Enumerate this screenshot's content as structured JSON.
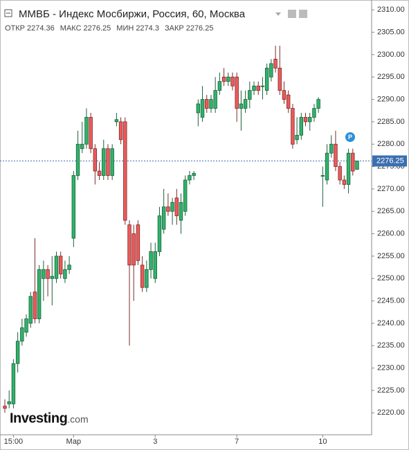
{
  "chart_data": {
    "type": "candlestick",
    "title": "ММВБ - Индекс Мосбиржи, Россия, 60, Москва",
    "header_labels": {
      "open": "ОТКР",
      "high": "МАКС",
      "low": "МИН",
      "close": "ЗАКР"
    },
    "logo": {
      "main": "Investing",
      "suffix": ".com"
    },
    "badge": "P",
    "up_color": "#2fb36b",
    "down_color": "#ee5a5a",
    "categories": [
      null,
      null,
      "15:00",
      null,
      null,
      null,
      null,
      null,
      null,
      null,
      null,
      null,
      null,
      null,
      null,
      null,
      "Мар",
      null,
      null,
      null,
      null,
      null,
      null,
      null,
      null,
      null,
      null,
      null,
      null,
      null,
      null,
      null,
      null,
      null,
      null,
      "3",
      null,
      null,
      null,
      null,
      null,
      null,
      null,
      null,
      null,
      null,
      null,
      null,
      null,
      null,
      null,
      null,
      null,
      null,
      "7",
      null,
      null,
      null,
      null,
      null,
      null,
      null,
      null,
      null,
      null,
      null,
      null,
      null,
      null,
      null,
      null,
      null,
      null,
      null,
      "10",
      null,
      null,
      null,
      null,
      null,
      null,
      null,
      null
    ],
    "open": [
      2221.5,
      2222,
      2222,
      2231,
      2236,
      2238,
      2240,
      2247,
      2241,
      2250,
      2252,
      2250,
      2250,
      2255,
      2250,
      2252,
      2259,
      2273,
      2279,
      2280,
      2286,
      2279,
      2274,
      2273,
      2279,
      2273,
      2285,
      2285,
      2285,
      2262,
      2260,
      2262,
      2253,
      2248,
      2252,
      2250,
      2256,
      2261,
      2266,
      2265,
      2268,
      2263,
      2265,
      2272,
      2273,
      2287,
      2286,
      2290,
      2288,
      2288,
      2292,
      2295,
      2294,
      2295,
      2295,
      2288,
      2288,
      2290,
      2292,
      2293,
      2293,
      2292,
      2295,
      2299,
      2297,
      2292,
      2291,
      2288,
      2281,
      2282,
      2286,
      2285,
      2286,
      2288,
      2273,
      2272,
      2278,
      2280,
      2275,
      2272,
      2271,
      2278,
      2274.36
    ],
    "high": [
      2223,
      2225,
      2232,
      2238,
      2241,
      2242,
      2247,
      2259,
      2253,
      2254,
      2253,
      2255,
      2256,
      2256,
      2254,
      2255,
      2274,
      2283,
      2285,
      2288,
      2287,
      2280,
      2276,
      2281,
      2280,
      2280,
      2287,
      2286,
      2286,
      2263,
      2262,
      2263,
      2255,
      2254,
      2258,
      2258,
      2266,
      2270,
      2269,
      2268,
      2270,
      2269,
      2273,
      2274,
      2274,
      2290,
      2293,
      2291,
      2291,
      2295,
      2296,
      2297,
      2296,
      2296,
      2296,
      2292,
      2292,
      2294,
      2294,
      2294,
      2295,
      2298,
      2299,
      2302,
      2302,
      2294,
      2292,
      2289,
      2286,
      2287,
      2287,
      2287,
      2289,
      2290.5,
      2275,
      2280,
      2282,
      2283,
      2276,
      2273,
      2279,
      2279,
      2276.25
    ],
    "low": [
      2220,
      2221,
      2221,
      2229,
      2235,
      2237,
      2239,
      2240,
      2240,
      2245,
      2246,
      2244,
      2249,
      2250,
      2249,
      2251,
      2257,
      2272,
      2278,
      2279,
      2278,
      2271,
      2272,
      2272,
      2272,
      2272,
      2284,
      2280,
      2262,
      2235,
      2245,
      2253,
      2247,
      2247,
      2250,
      2249,
      2255,
      2260,
      2264,
      2262,
      2262,
      2260,
      2264,
      2271,
      2272,
      2284,
      2285,
      2287,
      2287,
      2287,
      2291,
      2293,
      2293,
      2292,
      2285,
      2283,
      2287,
      2288,
      2291,
      2291,
      2290,
      2291,
      2294,
      2296,
      2291,
      2289,
      2287,
      2279,
      2280,
      2281,
      2284,
      2283,
      2285,
      2287,
      2266,
      2271,
      2277,
      2274,
      2271,
      2270,
      2269,
      2273,
      2274.3
    ],
    "close": [
      2221,
      2222.5,
      2231,
      2236,
      2239,
      2241,
      2246,
      2241,
      2252,
      2252,
      2250,
      2250.5,
      2255,
      2251,
      2252,
      2253,
      2273,
      2280,
      2280,
      2286,
      2279,
      2274,
      2273,
      2279,
      2273,
      2279,
      2285.5,
      2281,
      2263,
      2253,
      2253,
      2254,
      2248,
      2252,
      2256,
      2256,
      2264,
      2266,
      2265,
      2267,
      2264,
      2267,
      2272,
      2273,
      2273.5,
      2289,
      2290,
      2288,
      2290,
      2292,
      2294,
      2294,
      2295,
      2293,
      2288,
      2289,
      2290,
      2292,
      2293,
      2292,
      2293,
      2297,
      2298,
      2297,
      2292,
      2290,
      2288,
      2280,
      2282,
      2286,
      2285,
      2286,
      2288,
      2290,
      2273,
      2278,
      2280,
      2275,
      2272,
      2271,
      2278,
      2274,
      2276.25
    ],
    "ylim": [
      2215.1,
      2312.2
    ],
    "yticks": [
      {
        "value": 2220,
        "label": "2220.00"
      },
      {
        "value": 2225,
        "label": "2225.00"
      },
      {
        "value": 2230,
        "label": "2230.00"
      },
      {
        "value": 2235,
        "label": "2235.00"
      },
      {
        "value": 2240,
        "label": "2240.00"
      },
      {
        "value": 2245,
        "label": "2245.00"
      },
      {
        "value": 2250,
        "label": "2250.00"
      },
      {
        "value": 2255,
        "label": "2255.00"
      },
      {
        "value": 2260,
        "label": "2260.00"
      },
      {
        "value": 2265,
        "label": "2265.00"
      },
      {
        "value": 2270,
        "label": "2270.00"
      },
      {
        "value": 2275,
        "label": "2275.00"
      },
      {
        "value": 2280,
        "label": "2280.00"
      },
      {
        "value": 2285,
        "label": "2285.00"
      },
      {
        "value": 2290,
        "label": "2290.00"
      },
      {
        "value": 2295,
        "label": "2295.00"
      },
      {
        "value": 2300,
        "label": "2300.00"
      },
      {
        "value": 2305,
        "label": "2305.00"
      },
      {
        "value": 2310,
        "label": "2310.00"
      }
    ],
    "grid": false
  }
}
